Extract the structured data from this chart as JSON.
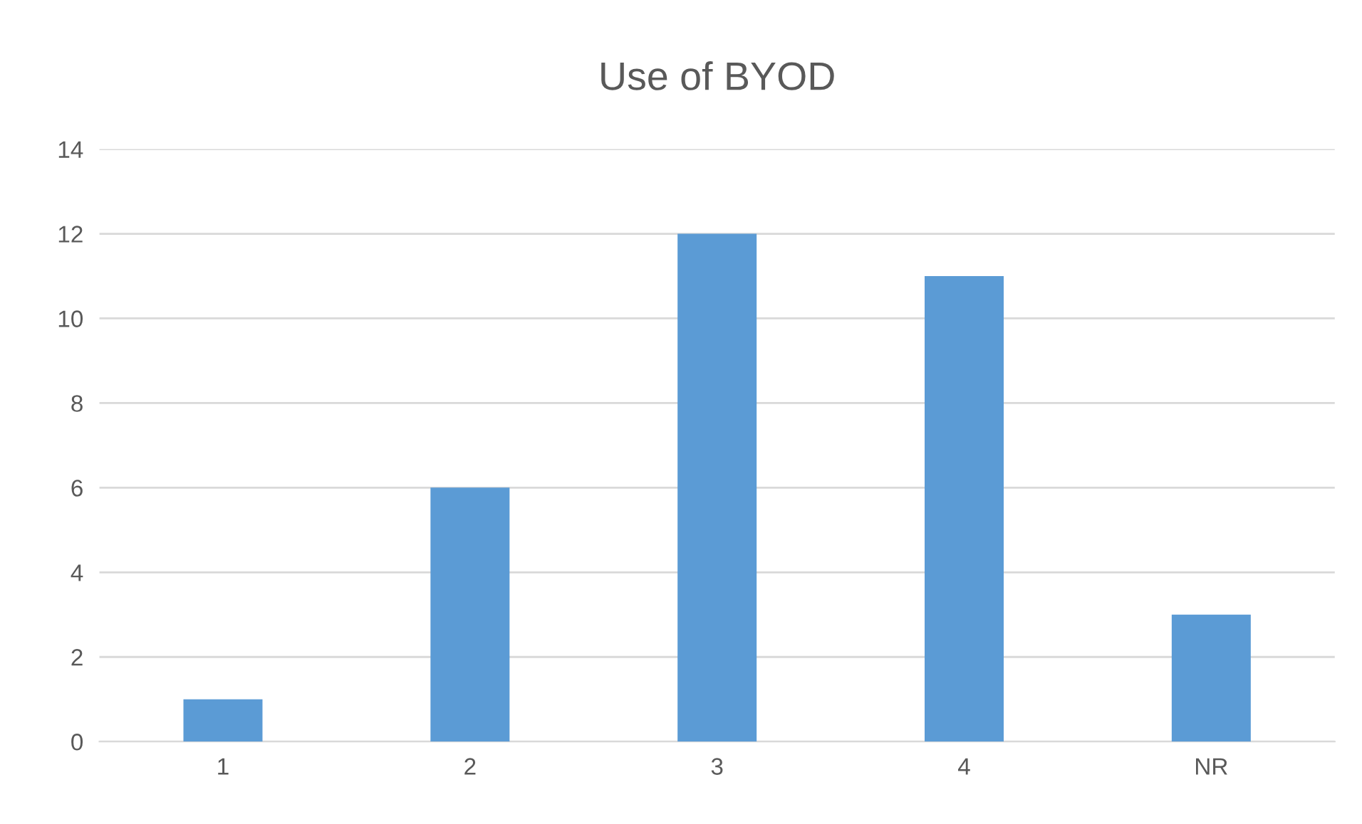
{
  "chart_data": {
    "type": "bar",
    "title": "Use of BYOD",
    "categories": [
      "1",
      "2",
      "3",
      "4",
      "NR"
    ],
    "values": [
      1,
      6,
      12,
      11,
      3
    ],
    "color": "#5b9bd5",
    "ylim": [
      0,
      14
    ],
    "yticks": [
      0,
      2,
      4,
      6,
      8,
      10,
      12,
      14
    ],
    "grid": "y"
  }
}
